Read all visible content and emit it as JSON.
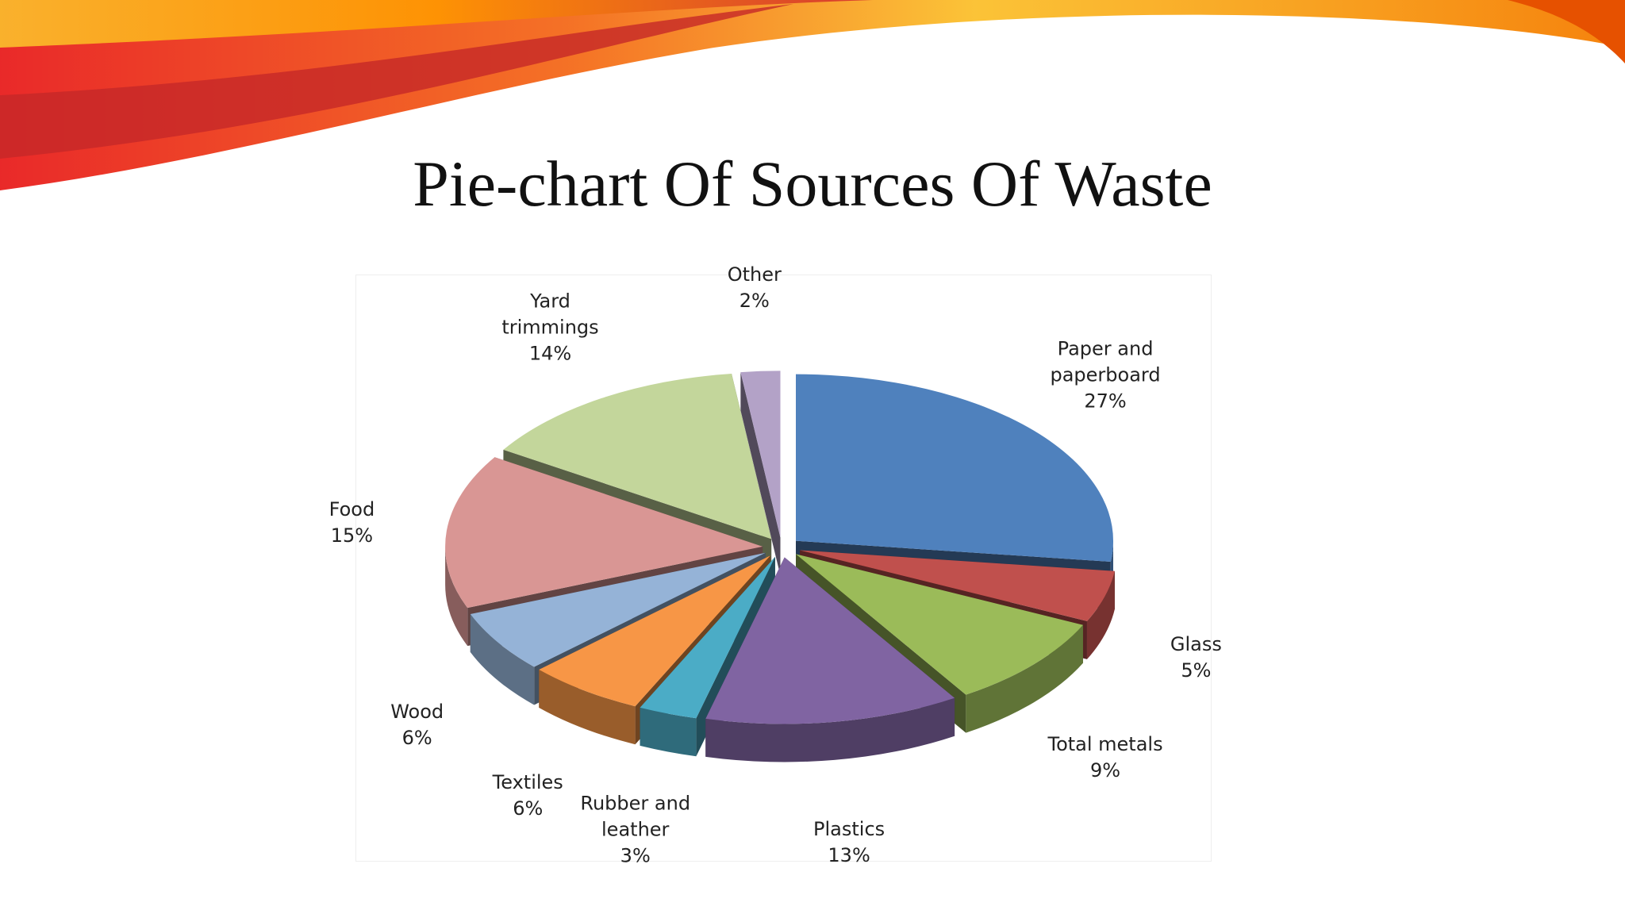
{
  "chart_data": {
    "type": "pie",
    "title": "Pie-chart Of Sources Of Waste",
    "categories": [
      "Paper and paperboard",
      "Glass",
      "Total metals",
      "Plastics",
      "Rubber and leather",
      "Textiles",
      "Wood",
      "Food",
      "Yard trimmings",
      "Other"
    ],
    "values": [
      27,
      5,
      9,
      13,
      3,
      6,
      6,
      15,
      14,
      2
    ],
    "value_labels": [
      "27%",
      "5%",
      "9%",
      "13%",
      "3%",
      "6%",
      "6%",
      "15%",
      "14%",
      "2%"
    ],
    "colors": [
      "#4f81bd",
      "#c0504d",
      "#9bbb59",
      "#8064a2",
      "#4bacc6",
      "#f79646",
      "#95b3d7",
      "#d99694",
      "#c3d69b",
      "#b3a2c7"
    ]
  }
}
